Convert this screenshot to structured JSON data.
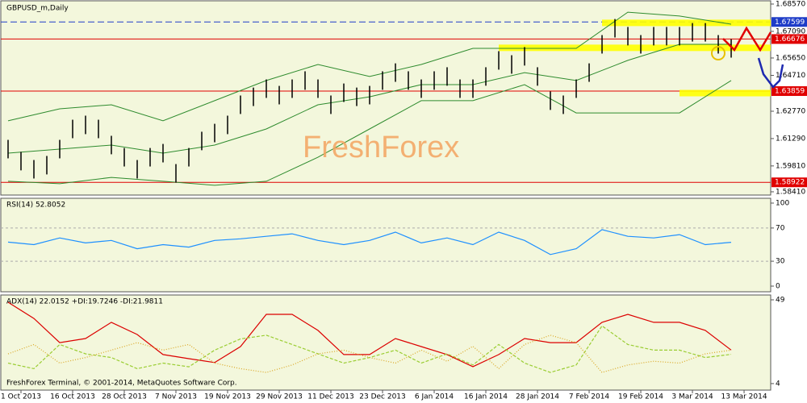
{
  "chart_data": [
    {
      "type": "range_bar",
      "title": "GBPUSD_m,Daily",
      "annotation": "FreshForex",
      "xlim": [
        -0.625,
        59.06
      ],
      "ylim": [
        1.58234,
        1.68788
      ],
      "color": "#000000",
      "high": [
        1.6122,
        1.6057,
        1.6013,
        1.6035,
        1.6122,
        1.6231,
        1.6253,
        1.6231,
        1.6144,
        1.6078,
        1.6013,
        1.6078,
        1.61,
        1.5991,
        1.6078,
        1.6166,
        1.6209,
        1.6253,
        1.6362,
        1.6405,
        1.6449,
        1.6414,
        1.6449,
        1.6493,
        1.6449,
        1.6362,
        1.6427,
        1.6405,
        1.6414,
        1.6493,
        1.6536,
        1.6493,
        1.6449,
        1.6493,
        1.6515,
        1.6449,
        1.6449,
        1.6515,
        1.6602,
        1.658,
        1.6624,
        1.6515,
        1.6384,
        1.6362,
        1.6449,
        1.6536,
        1.6689,
        1.6776,
        1.6733,
        1.6689,
        1.6733,
        1.6733,
        1.6733,
        1.6754,
        1.6754,
        1.6689,
        1.6667
      ],
      "low": [
        1.6022,
        1.5957,
        1.5913,
        1.5935,
        1.6022,
        1.6131,
        1.6153,
        1.6131,
        1.6044,
        1.5978,
        1.5913,
        1.5978,
        1.6,
        1.5891,
        1.5978,
        1.6066,
        1.6109,
        1.6153,
        1.6262,
        1.6305,
        1.6349,
        1.6314,
        1.6349,
        1.6393,
        1.6349,
        1.6262,
        1.6327,
        1.6305,
        1.6314,
        1.6393,
        1.6436,
        1.6393,
        1.6349,
        1.6393,
        1.6415,
        1.6349,
        1.6349,
        1.6415,
        1.6502,
        1.648,
        1.6524,
        1.6415,
        1.6284,
        1.6262,
        1.6349,
        1.6436,
        1.6589,
        1.6676,
        1.6633,
        1.6589,
        1.6633,
        1.6633,
        1.6633,
        1.6654,
        1.6654,
        1.6589,
        1.6567
      ],
      "bands": {
        "color": "#2e8b2e",
        "x": [
          0,
          4,
          8,
          12,
          16,
          20,
          24,
          28,
          32,
          36,
          40,
          44,
          48,
          52,
          56
        ],
        "upper": [
          1.6225,
          1.629,
          1.6312,
          1.6225,
          1.6334,
          1.6443,
          1.653,
          1.6465,
          1.653,
          1.6617,
          1.6617,
          1.6617,
          1.6813,
          1.6792,
          1.6748
        ],
        "middle": [
          1.605,
          1.6072,
          1.6094,
          1.605,
          1.6094,
          1.6181,
          1.6312,
          1.6355,
          1.6421,
          1.6421,
          1.6486,
          1.6443,
          1.6552,
          1.6639,
          1.6639
        ],
        "lower": [
          1.5898,
          1.5885,
          1.5919,
          1.5898,
          1.5876,
          1.5898,
          1.6028,
          1.6181,
          1.6334,
          1.6334,
          1.6421,
          1.6268,
          1.6268,
          1.6268,
          1.6443
        ]
      },
      "zones": [
        {
          "value": 1.6755,
          "from": 46
        },
        {
          "value": 1.662,
          "from": 38
        },
        {
          "value": 1.6375,
          "from": 52
        }
      ],
      "zone_color": "#ffff00",
      "yticks": [
        {
          "value": 1.6857,
          "label": "1.68570"
        },
        {
          "value": 1.6709,
          "label": "1.67090"
        },
        {
          "value": 1.6565,
          "label": "1.65650"
        },
        {
          "value": 1.6471,
          "label": "1.64710"
        },
        {
          "value": 1.6277,
          "label": "1.62770"
        },
        {
          "value": 1.6129,
          "label": "1.61290"
        },
        {
          "value": 1.5981,
          "label": "1.59810"
        },
        {
          "value": 1.5841,
          "label": "1.58410"
        }
      ],
      "levels": [
        {
          "value": 1.67599,
          "label": "1.67599",
          "color": "#1e3cc8",
          "dashed": true
        },
        {
          "value": 1.66676,
          "label": "1.66676",
          "color": "#e00000",
          "dashed": false
        },
        {
          "value": 1.63859,
          "label": "1.63859",
          "color": "#e00000",
          "dashed": false
        },
        {
          "value": 1.58922,
          "label": "1.58922",
          "color": "#e00000",
          "dashed": false
        }
      ]
    },
    {
      "type": "line",
      "title": "RSI(14) 52.8052",
      "xlim": [
        -0.625,
        59.06
      ],
      "ylim": [
        -6.8,
        105.8
      ],
      "yticks": [
        100,
        70,
        30,
        0
      ],
      "levels": [
        70,
        30
      ],
      "x": [
        0,
        2,
        4,
        6,
        8,
        10,
        12,
        14,
        16,
        18,
        20,
        22,
        24,
        26,
        28,
        30,
        32,
        34,
        36,
        38,
        40,
        42,
        44,
        46,
        48,
        50,
        52,
        54,
        56
      ],
      "series": [
        {
          "color": "#1e90ff",
          "dash": "",
          "values": [
            53,
            50,
            58,
            52,
            55,
            45,
            50,
            47,
            55,
            57,
            60,
            63,
            55,
            50,
            55,
            65,
            52,
            58,
            50,
            65,
            55,
            38,
            45,
            68,
            60,
            58,
            62,
            50,
            52.8052
          ]
        }
      ]
    },
    {
      "type": "line",
      "title": "ADX(14) 22.0152 +DI:19.7246 -DI:21.9811",
      "annotation": "FreshForex Terminal, © 2001-2014, MetaQuotes Software Corp.",
      "xlim": [
        -0.625,
        59.06
      ],
      "ylim": [
        0.5,
        51.6
      ],
      "yticks": [
        49,
        4
      ],
      "x": [
        0,
        2,
        4,
        6,
        8,
        10,
        12,
        14,
        16,
        18,
        20,
        22,
        24,
        26,
        28,
        30,
        32,
        34,
        36,
        38,
        40,
        42,
        44,
        46,
        48,
        50,
        52,
        54,
        56
      ],
      "series": [
        {
          "color": "#dc0000",
          "dash": "",
          "values": [
            47.7,
            39,
            26,
            28.2,
            36.9,
            30.4,
            19.6,
            17.4,
            15.3,
            23.9,
            41.2,
            41.2,
            32.6,
            19.6,
            19.6,
            28.2,
            23.9,
            19.6,
            13.1,
            19.6,
            28.2,
            26,
            26,
            36.9,
            41.2,
            36.9,
            36.9,
            32.6,
            22.0152
          ]
        },
        {
          "color": "#9acd32",
          "dash": "4 2",
          "values": [
            15,
            12,
            25,
            20,
            18,
            12,
            15,
            13,
            22,
            28,
            30,
            25,
            20,
            15,
            18,
            22,
            15,
            20,
            14,
            25,
            15,
            10,
            14,
            35,
            25,
            22,
            22,
            18,
            19.7246
          ]
        },
        {
          "color": "#daa520",
          "dash": "1 2",
          "values": [
            20,
            25,
            15,
            18,
            22,
            26,
            22,
            25,
            15,
            12,
            10,
            14,
            20,
            22,
            18,
            15,
            22,
            16,
            24,
            12,
            25,
            30,
            26,
            10,
            14,
            16,
            15,
            20,
            21.9811
          ]
        }
      ],
      "xticks": [
        {
          "value": 1,
          "label": "1 Oct 2013"
        },
        {
          "value": 5,
          "label": "16 Oct 2013"
        },
        {
          "value": 9,
          "label": "28 Oct 2013"
        },
        {
          "value": 13,
          "label": "7 Nov 2013"
        },
        {
          "value": 17,
          "label": "19 Nov 2013"
        },
        {
          "value": 21,
          "label": "29 Nov 2013"
        },
        {
          "value": 25,
          "label": "11 Dec 2013"
        },
        {
          "value": 29,
          "label": "23 Dec 2013"
        },
        {
          "value": 33,
          "label": "6 Jan 2014"
        },
        {
          "value": 37,
          "label": "16 Jan 2014"
        },
        {
          "value": 41,
          "label": "28 Jan 2014"
        },
        {
          "value": 45,
          "label": "7 Feb 2014"
        },
        {
          "value": 49,
          "label": "19 Feb 2014"
        },
        {
          "value": 53,
          "label": "3 Mar 2014"
        },
        {
          "value": 57,
          "label": "13 Mar 2014"
        }
      ]
    }
  ]
}
